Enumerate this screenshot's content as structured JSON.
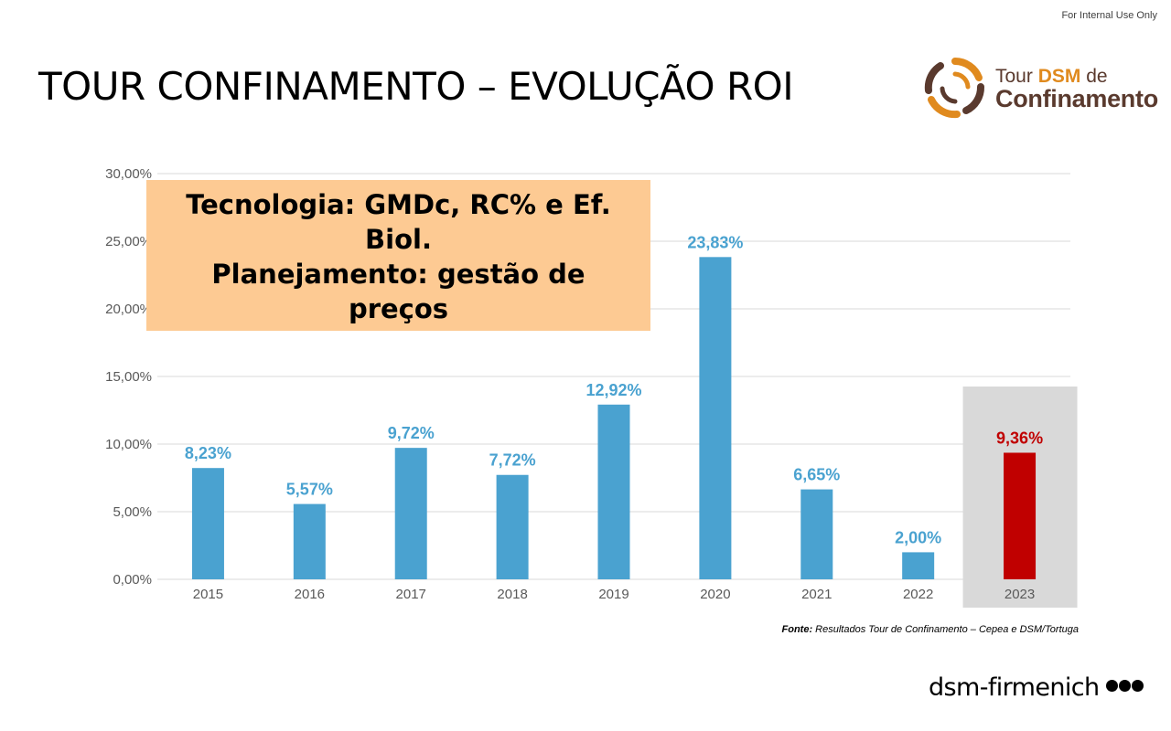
{
  "header": {
    "internal_note": "For Internal Use Only",
    "title": "TOUR CONFINAMENTO – EVOLUÇÃO ROI"
  },
  "logo": {
    "line1_prefix": "Tour ",
    "line1_brand": "DSM",
    "line1_suffix": " de",
    "line2": "Confinamento",
    "colors": {
      "orange": "#e08a1e",
      "brown": "#5a3a2e"
    }
  },
  "callout": {
    "lines": [
      "Tecnologia: GMDc, RC% e Ef.",
      "Biol.",
      "Planejamento: gestão de",
      "preços"
    ],
    "background": "#fdca93"
  },
  "chart_data": {
    "type": "bar",
    "categories": [
      "2015",
      "2016",
      "2017",
      "2018",
      "2019",
      "2020",
      "2021",
      "2022",
      "2023"
    ],
    "values": [
      8.23,
      5.57,
      9.72,
      7.72,
      12.92,
      23.83,
      6.65,
      2.0,
      9.36
    ],
    "data_labels": [
      "8,23%",
      "5,57%",
      "9,72%",
      "7,72%",
      "12,92%",
      "23,83%",
      "6,65%",
      "2,00%",
      "9,36%"
    ],
    "y_ticks": [
      "0,00%",
      "5,00%",
      "10,00%",
      "15,00%",
      "20,00%",
      "25,00%",
      "30,00%"
    ],
    "ylim": [
      0,
      30
    ],
    "grid": true,
    "highlight_index": 8,
    "colors": {
      "bar": "#4aa2d0",
      "highlight_bar": "#c00000",
      "highlight_bg": "#d9d9d9",
      "grid": "#d9d9d9"
    }
  },
  "footer": {
    "source_label": "Fonte:",
    "source_text": " Resultados Tour de Confinamento – Cepea e DSM/Tortuga",
    "brand": "dsm-firmenich"
  }
}
